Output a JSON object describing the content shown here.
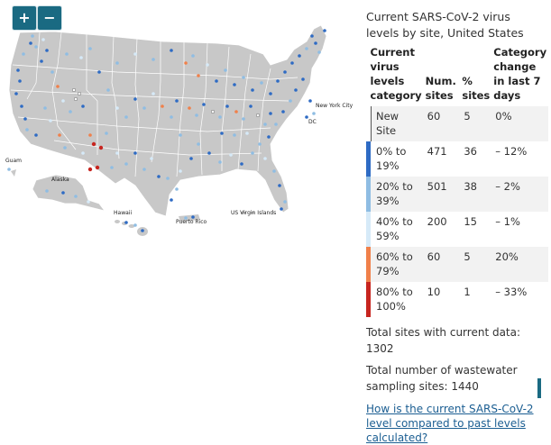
{
  "zoom": {
    "in_label": "+",
    "out_label": "−"
  },
  "map": {
    "labels": {
      "guam": "Guam",
      "alaska": "Alaska",
      "hawaii": "Hawaii",
      "puerto_rico": "Puerto Rico",
      "usvi": "US Virgin Islands",
      "nyc": "New York City",
      "dc": "DC"
    },
    "colors": {
      "land": "#c8c8c8",
      "border": "#ffffff",
      "new": "#ffffff",
      "c0": "#2e6bc4",
      "c20": "#8fbde3",
      "c40": "#d6eaf8",
      "c60": "#f0804a",
      "c80": "#c7251f"
    }
  },
  "panel": {
    "title": "Current SARS-CoV-2 virus levels by site, United States",
    "headers": {
      "category": "Current virus levels category",
      "num": "Num. sites",
      "pct": "% sites",
      "change": "Category change in last 7 days"
    },
    "rows": [
      {
        "category": "New Site",
        "num": "60",
        "pct": "5",
        "change": "0%",
        "color": "#ffffff"
      },
      {
        "category": "0% to 19%",
        "num": "471",
        "pct": "36",
        "change": "– 12%",
        "color": "#2e6bc4"
      },
      {
        "category": "20% to 39%",
        "num": "501",
        "pct": "38",
        "change": "– 2%",
        "color": "#8fbde3"
      },
      {
        "category": "40% to 59%",
        "num": "200",
        "pct": "15",
        "change": "– 1%",
        "color": "#d6eaf8"
      },
      {
        "category": "60% to 79%",
        "num": "60",
        "pct": "5",
        "change": "20%",
        "color": "#f0804a"
      },
      {
        "category": "80% to 100%",
        "num": "10",
        "pct": "1",
        "change": "– 33%",
        "color": "#c7251f"
      }
    ],
    "total_current": "Total sites with current data: 1302",
    "total_sampling": "Total number of wastewater sampling sites: 1440",
    "link": "How is the current SARS-CoV-2 level compared to past levels calculated?"
  }
}
